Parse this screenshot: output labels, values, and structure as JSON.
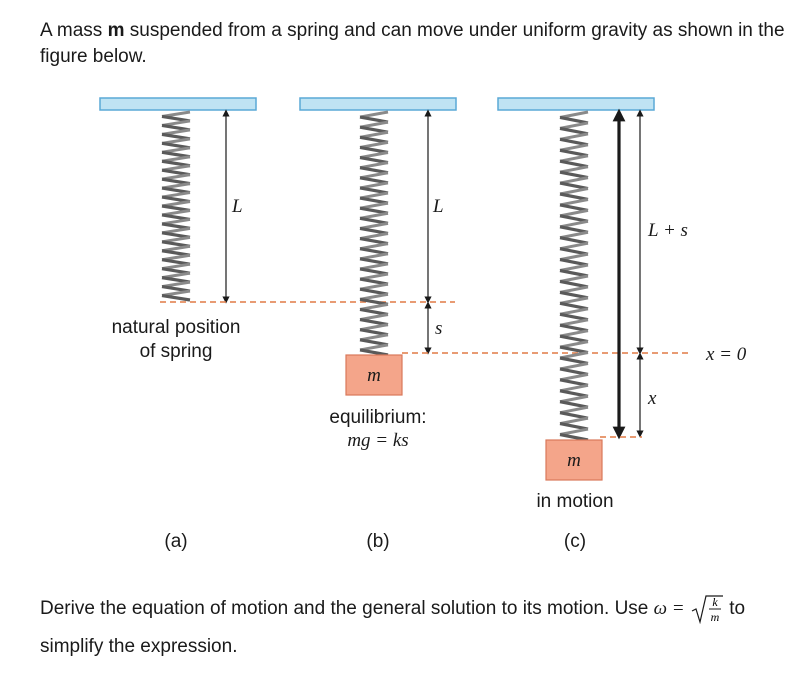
{
  "intro": {
    "before": "A mass ",
    "bold": "m",
    "after": " suspended from a spring and can move under uniform gravity as shown in the figure below."
  },
  "figure": {
    "panel_a": {
      "length_label": "L",
      "caption_line1": "natural position",
      "caption_line2": "of spring",
      "panel_label": "(a)"
    },
    "panel_b": {
      "length_label": "L",
      "stretch_label": "s",
      "mass_label": "m",
      "caption_line1": "equilibrium:",
      "caption_line2": "mg = ks",
      "panel_label": "(b)"
    },
    "panel_c": {
      "length_label": "L + s",
      "displacement_label": "x",
      "origin_label": "x = 0",
      "mass_label": "m",
      "caption": "in motion",
      "panel_label": "(c)"
    },
    "colors": {
      "ceiling_fill": "#bfe3f3",
      "ceiling_stroke": "#5aa9d6",
      "mass_fill": "#f4a58a",
      "mass_stroke": "#d9785a",
      "dashed_line": "#e07a45"
    }
  },
  "question": {
    "text_before": "Derive the equation of motion and the general solution to its motion. Use ",
    "omega": "ω =",
    "frac_num": "k",
    "frac_den": "m",
    "text_after": " to",
    "line2": "simplify the expression."
  }
}
